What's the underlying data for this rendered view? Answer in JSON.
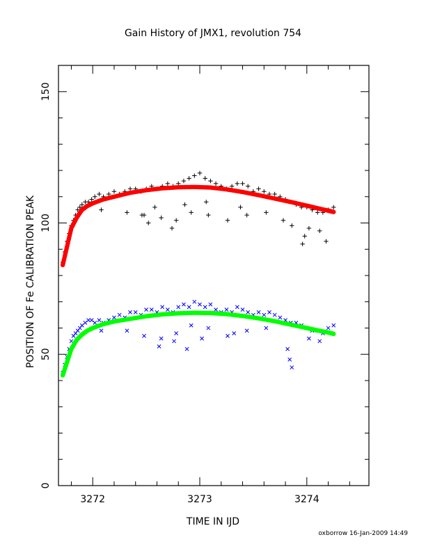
{
  "chart_data": {
    "type": "scatter",
    "title": "Gain History of JMX1, revolution 754",
    "xlabel": "TIME IN IJD",
    "ylabel": "POSITION OF Fe CALIBRATION PEAK",
    "xlim": [
      3271.68,
      3274.58
    ],
    "ylim": [
      0,
      160
    ],
    "xticks": [
      3272,
      3273,
      3274
    ],
    "xtick_labels": [
      "3272",
      "3273",
      "3274"
    ],
    "yticks": [
      0,
      50,
      100,
      150
    ],
    "ytick_labels": [
      "0",
      "50",
      "100",
      "150"
    ],
    "grid": false,
    "series": [
      {
        "marker": "plus",
        "color": "#000000",
        "x": [
          3271.72,
          3271.74,
          3271.76,
          3271.78,
          3271.8,
          3271.82,
          3271.84,
          3271.86,
          3271.88,
          3271.9,
          3271.93,
          3271.96,
          3271.99,
          3272.02,
          3272.06,
          3272.1,
          3272.15,
          3272.2,
          3272.25,
          3272.3,
          3272.35,
          3272.4,
          3272.45,
          3272.5,
          3272.55,
          3272.6,
          3272.65,
          3272.7,
          3272.75,
          3272.8,
          3272.85,
          3272.9,
          3272.95,
          3273.0,
          3273.05,
          3273.1,
          3273.15,
          3273.2,
          3273.25,
          3273.3,
          3273.35,
          3273.4,
          3273.45,
          3273.5,
          3273.55,
          3273.6,
          3273.65,
          3273.7,
          3273.75,
          3273.8,
          3273.85,
          3273.9,
          3273.95,
          3274.0,
          3274.05,
          3274.1,
          3274.15,
          3274.2,
          3274.25,
          3272.08,
          3272.32,
          3272.48,
          3272.64,
          3272.78,
          3272.92,
          3273.08,
          3273.26,
          3273.44,
          3273.62,
          3273.78,
          3273.86,
          3274.02,
          3274.12,
          3274.18,
          3273.96,
          3273.98,
          3272.46,
          3272.58,
          3272.86,
          3273.06,
          3273.38,
          3272.52,
          3272.74
        ],
        "y": [
          85,
          89,
          93,
          96,
          99,
          101,
          103,
          105,
          106,
          107,
          108,
          108,
          109,
          110,
          111,
          110,
          111,
          112,
          111,
          112,
          113,
          113,
          112,
          113,
          114,
          113,
          114,
          115,
          114,
          115,
          116,
          117,
          118,
          119,
          117,
          116,
          115,
          114,
          113,
          114,
          115,
          115,
          114,
          112,
          113,
          112,
          111,
          111,
          110,
          109,
          108,
          107,
          106,
          106,
          105,
          104,
          104,
          105,
          106,
          105,
          104,
          103,
          102,
          101,
          104,
          103,
          101,
          103,
          104,
          101,
          99,
          98,
          97,
          93,
          92,
          95,
          103,
          106,
          107,
          108,
          106,
          100,
          98
        ]
      },
      {
        "marker": "curve",
        "color": "#ff0000",
        "x": [
          3271.72,
          3271.76,
          3271.8,
          3271.85,
          3271.9,
          3271.95,
          3272.0,
          3272.1,
          3272.2,
          3272.35,
          3272.5,
          3272.65,
          3272.8,
          3272.95,
          3273.1,
          3273.25,
          3273.4,
          3273.55,
          3273.7,
          3273.85,
          3274.0,
          3274.1,
          3274.2,
          3274.25
        ],
        "y": [
          84,
          91,
          98,
          102,
          105,
          106.5,
          107.5,
          109,
          110,
          111.5,
          112.5,
          113.2,
          113.6,
          113.7,
          113.5,
          112.8,
          111.8,
          110.6,
          109.3,
          108.0,
          106.6,
          105.6,
          104.7,
          104.2
        ]
      },
      {
        "marker": "cross",
        "color": "#0000ff",
        "x": [
          3271.72,
          3271.74,
          3271.76,
          3271.78,
          3271.8,
          3271.82,
          3271.84,
          3271.86,
          3271.88,
          3271.9,
          3271.93,
          3271.96,
          3271.99,
          3272.02,
          3272.06,
          3272.1,
          3272.15,
          3272.2,
          3272.25,
          3272.3,
          3272.35,
          3272.4,
          3272.45,
          3272.5,
          3272.55,
          3272.6,
          3272.65,
          3272.7,
          3272.75,
          3272.8,
          3272.85,
          3272.9,
          3272.95,
          3273.0,
          3273.05,
          3273.1,
          3273.15,
          3273.2,
          3273.25,
          3273.3,
          3273.35,
          3273.4,
          3273.45,
          3273.5,
          3273.55,
          3273.6,
          3273.65,
          3273.7,
          3273.75,
          3273.8,
          3273.85,
          3273.9,
          3273.95,
          3274.0,
          3274.05,
          3274.1,
          3274.15,
          3274.2,
          3274.25,
          3272.08,
          3272.32,
          3272.48,
          3272.64,
          3272.78,
          3272.92,
          3273.08,
          3273.26,
          3273.44,
          3273.62,
          3273.82,
          3273.84,
          3273.86,
          3274.02,
          3274.12,
          3272.62,
          3272.76,
          3272.88,
          3273.02,
          3273.32
        ],
        "y": [
          43,
          46,
          49,
          52,
          55,
          57,
          58,
          59,
          60,
          61,
          62,
          63,
          63,
          62,
          63,
          62,
          63,
          64,
          65,
          64,
          66,
          66,
          65,
          67,
          67,
          66,
          68,
          67,
          66,
          68,
          69,
          68,
          70,
          69,
          68,
          69,
          67,
          66,
          67,
          66,
          68,
          67,
          66,
          65,
          66,
          65,
          66,
          65,
          64,
          63,
          62,
          62,
          61,
          60,
          59,
          59,
          58,
          60,
          61,
          59,
          59,
          57,
          56,
          58,
          61,
          60,
          57,
          59,
          60,
          52,
          48,
          45,
          56,
          55,
          53,
          55,
          52,
          56,
          58
        ]
      },
      {
        "marker": "curve",
        "color": "#00ff00",
        "x": [
          3271.72,
          3271.76,
          3271.8,
          3271.85,
          3271.9,
          3271.95,
          3272.0,
          3272.1,
          3272.2,
          3272.35,
          3272.5,
          3272.65,
          3272.8,
          3272.95,
          3273.1,
          3273.25,
          3273.4,
          3273.55,
          3273.7,
          3273.85,
          3274.0,
          3274.1,
          3274.2,
          3274.25
        ],
        "y": [
          42,
          47,
          52,
          55.5,
          57.5,
          59,
          60,
          61.5,
          62.5,
          63.5,
          64.5,
          65.2,
          65.6,
          65.8,
          65.7,
          65.3,
          64.6,
          63.7,
          62.6,
          61.3,
          60.0,
          59.1,
          58.3,
          57.8
        ]
      }
    ]
  },
  "footer": {
    "stamp": "oxborrow 16-Jan-2009 14:49"
  }
}
